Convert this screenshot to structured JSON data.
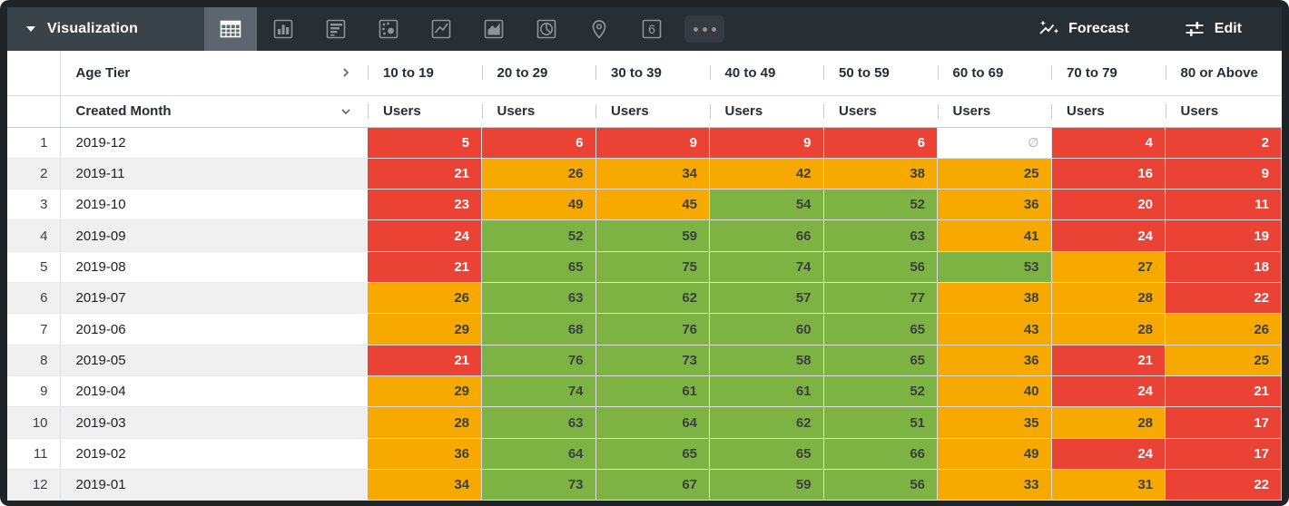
{
  "toolbar": {
    "visualization_label": "Visualization",
    "forecast_label": "Forecast",
    "edit_label": "Edit",
    "single_value_glyph": "6",
    "icons": [
      "table",
      "column-chart",
      "bar-chart",
      "scatter-plot",
      "line-chart",
      "area-chart",
      "pie-chart",
      "map-pin",
      "single-value",
      "more"
    ],
    "selected_icon": "table"
  },
  "colors": {
    "red": "#ea4335",
    "orange": "#f7a900",
    "green": "#7cb342",
    "toolbar_bg": "#272e34",
    "selected_icon_bg": "#5d666e"
  },
  "table": {
    "pivot_field": "Age Tier",
    "row_field": "Created Month",
    "measure_label": "Users",
    "null_symbol": "∅",
    "columns": [
      "10 to 19",
      "20 to 29",
      "30 to 39",
      "40 to 49",
      "50 to 59",
      "60 to 69",
      "70 to 79",
      "80 or Above"
    ],
    "rows": [
      {
        "index": "1",
        "month": "2019-12",
        "values": [
          5,
          6,
          9,
          9,
          6,
          null,
          4,
          2
        ],
        "colors": [
          "red",
          "red",
          "red",
          "red",
          "red",
          "null",
          "red",
          "red"
        ]
      },
      {
        "index": "2",
        "month": "2019-11",
        "values": [
          21,
          26,
          34,
          42,
          38,
          25,
          16,
          9
        ],
        "colors": [
          "red",
          "orange",
          "orange",
          "orange",
          "orange",
          "orange",
          "red",
          "red"
        ]
      },
      {
        "index": "3",
        "month": "2019-10",
        "values": [
          23,
          49,
          45,
          54,
          52,
          36,
          20,
          11
        ],
        "colors": [
          "red",
          "orange",
          "orange",
          "green",
          "green",
          "orange",
          "red",
          "red"
        ]
      },
      {
        "index": "4",
        "month": "2019-09",
        "values": [
          24,
          52,
          59,
          66,
          63,
          41,
          24,
          19
        ],
        "colors": [
          "red",
          "green",
          "green",
          "green",
          "green",
          "orange",
          "red",
          "red"
        ]
      },
      {
        "index": "5",
        "month": "2019-08",
        "values": [
          21,
          65,
          75,
          74,
          56,
          53,
          27,
          18
        ],
        "colors": [
          "red",
          "green",
          "green",
          "green",
          "green",
          "green",
          "orange",
          "red"
        ]
      },
      {
        "index": "6",
        "month": "2019-07",
        "values": [
          26,
          63,
          62,
          57,
          77,
          38,
          28,
          22
        ],
        "colors": [
          "orange",
          "green",
          "green",
          "green",
          "green",
          "orange",
          "orange",
          "red"
        ]
      },
      {
        "index": "7",
        "month": "2019-06",
        "values": [
          29,
          68,
          76,
          60,
          65,
          43,
          28,
          26
        ],
        "colors": [
          "orange",
          "green",
          "green",
          "green",
          "green",
          "orange",
          "orange",
          "orange"
        ]
      },
      {
        "index": "8",
        "month": "2019-05",
        "values": [
          21,
          76,
          73,
          58,
          65,
          36,
          21,
          25
        ],
        "colors": [
          "red",
          "green",
          "green",
          "green",
          "green",
          "orange",
          "red",
          "orange"
        ]
      },
      {
        "index": "9",
        "month": "2019-04",
        "values": [
          29,
          74,
          61,
          61,
          52,
          40,
          24,
          21
        ],
        "colors": [
          "orange",
          "green",
          "green",
          "green",
          "green",
          "orange",
          "red",
          "red"
        ]
      },
      {
        "index": "10",
        "month": "2019-03",
        "values": [
          28,
          63,
          64,
          62,
          51,
          35,
          28,
          17
        ],
        "colors": [
          "orange",
          "green",
          "green",
          "green",
          "green",
          "orange",
          "orange",
          "red"
        ]
      },
      {
        "index": "11",
        "month": "2019-02",
        "values": [
          36,
          64,
          65,
          65,
          66,
          49,
          24,
          17
        ],
        "colors": [
          "orange",
          "green",
          "green",
          "green",
          "green",
          "orange",
          "red",
          "red"
        ]
      },
      {
        "index": "12",
        "month": "2019-01",
        "values": [
          34,
          73,
          67,
          59,
          56,
          33,
          31,
          22
        ],
        "colors": [
          "orange",
          "green",
          "green",
          "green",
          "green",
          "orange",
          "orange",
          "red"
        ]
      }
    ]
  }
}
